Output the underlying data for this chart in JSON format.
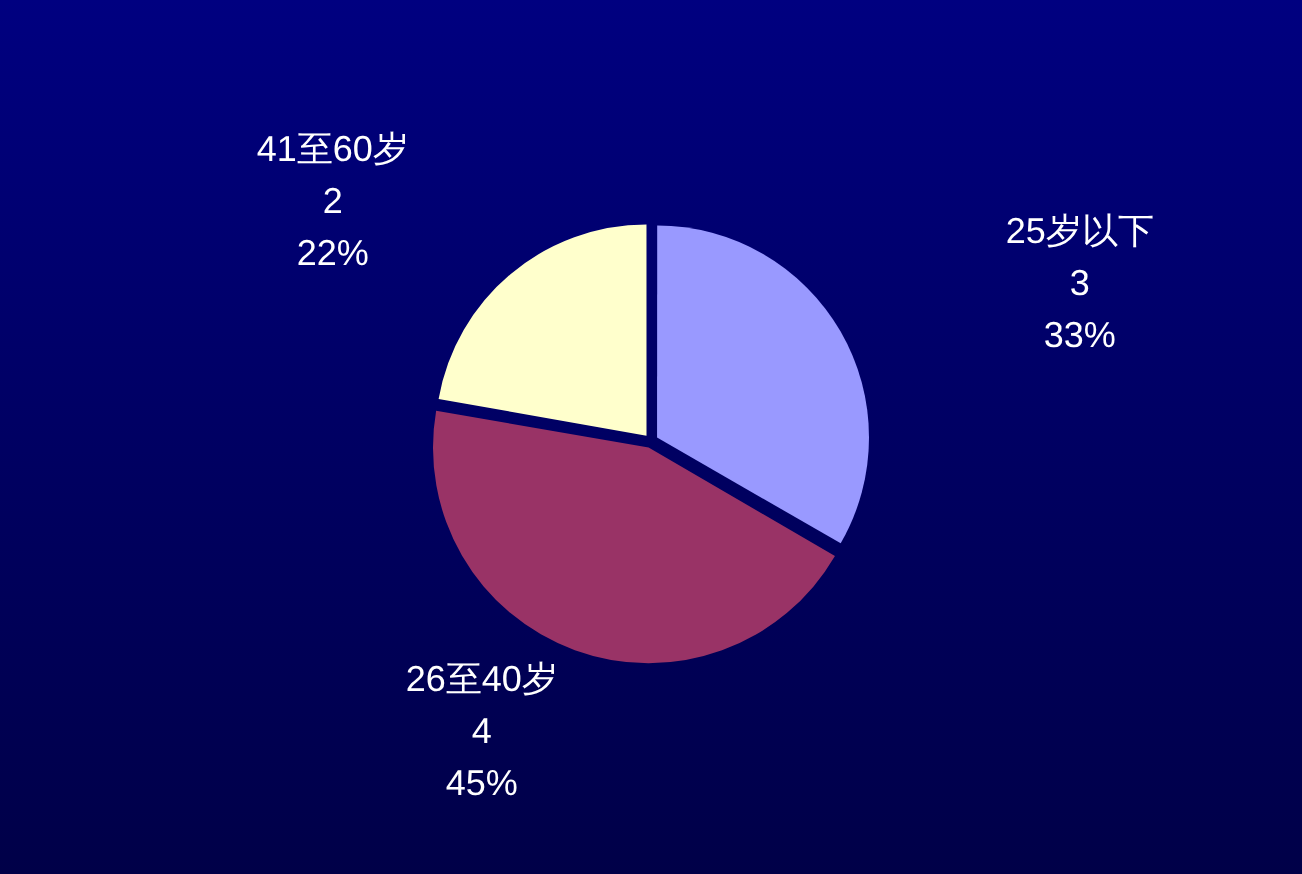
{
  "chart_data": {
    "type": "pie",
    "categories": [
      "25岁以下",
      "26至40岁",
      "41至60岁"
    ],
    "values": [
      3,
      4,
      2
    ],
    "colors": [
      "#9999ff",
      "#993366",
      "#ffffcc"
    ],
    "data_labels": true,
    "annotations": [
      {
        "text": "33%",
        "x": "25岁以下"
      },
      {
        "text": "45%",
        "x": "26至40岁"
      },
      {
        "text": "22%",
        "x": "41至60岁"
      }
    ],
    "legend": false
  }
}
